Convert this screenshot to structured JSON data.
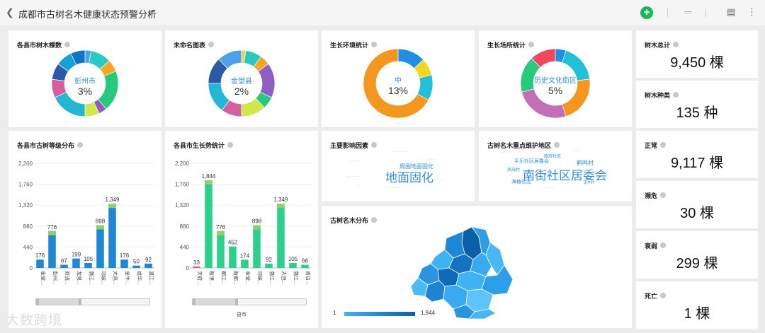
{
  "app": {
    "title": "成都市古树名木健康状态预警分析"
  },
  "cards": {
    "c1": {
      "title": "各县市树木棵数",
      "center_label": "彭州市",
      "center_pct": "3%"
    },
    "c2": {
      "title": "未命名图表",
      "center_label": "金堂县",
      "center_pct": "2%"
    },
    "c3": {
      "title": "生长环境统计",
      "center_label": "中",
      "center_pct": "13%"
    },
    "c4": {
      "title": "生长场所统计",
      "center_label": "历史文化街区",
      "center_pct": "5%"
    },
    "c5": {
      "title": "各县市古树等级分布"
    },
    "c6": {
      "title": "各县市生长势统计",
      "xaxis_name": "县市"
    },
    "c7": {
      "title": "主要影响因素",
      "big_word": "地面固化",
      "mid_word": "周围地面固化"
    },
    "c8": {
      "title": "古树名木重点维护地区",
      "big_word": "南街社区居委会",
      "mid_word": "历史文化街区",
      "words": [
        "鹤鸣村",
        "政府社区",
        "平乐社区居委会",
        "凤电村",
        "太平村",
        "海椿社区"
      ]
    },
    "c9": {
      "title": "古树名木分布",
      "legend_min": "1",
      "legend_max": "1,844"
    }
  },
  "kpis": [
    {
      "title": "树木总计",
      "value": "9,450 棵"
    },
    {
      "title": "树木种类",
      "value": "135 种"
    },
    {
      "title": "正常",
      "value": "9,117 棵"
    },
    {
      "title": "濒危",
      "value": "30 棵"
    },
    {
      "title": "衰弱",
      "value": "299 棵"
    },
    {
      "title": "死亡",
      "value": "1 棵"
    }
  ],
  "watermark": "大数跨境",
  "icons": {
    "back": "chevron-left-icon",
    "menu": "hamburger-icon",
    "add": "plus-icon",
    "present": "present-icon",
    "comment": "comment-icon",
    "more": "more-vertical-icon"
  },
  "chart_data": [
    {
      "type": "pie",
      "title": "各县市树木棵数",
      "slices": [
        {
          "label": "彭州市",
          "pct": 3,
          "color": "#4ea1e8"
        },
        {
          "label": "",
          "pct": 10,
          "color": "#2bc9c4"
        },
        {
          "label": "",
          "pct": 6,
          "color": "#f5a623"
        },
        {
          "label": "",
          "pct": 20,
          "color": "#27c97a"
        },
        {
          "label": "",
          "pct": 4,
          "color": "#8e5ec2"
        },
        {
          "label": "",
          "pct": 7,
          "color": "#cfe84a"
        },
        {
          "label": "",
          "pct": 18,
          "color": "#23b7d6"
        },
        {
          "label": "",
          "pct": 9,
          "color": "#d65fa0"
        },
        {
          "label": "",
          "pct": 8,
          "color": "#2c5aa8"
        },
        {
          "label": "",
          "pct": 8,
          "color": "#17a0d8"
        },
        {
          "label": "",
          "pct": 7,
          "color": "#0f74c2"
        }
      ]
    },
    {
      "type": "pie",
      "title": "未命名图表",
      "slices": [
        {
          "label": "金堂县",
          "pct": 2,
          "color": "#f1d43a"
        },
        {
          "label": "",
          "pct": 8,
          "color": "#2bc9c4"
        },
        {
          "label": "",
          "pct": 5,
          "color": "#f5a623"
        },
        {
          "label": "",
          "pct": 17,
          "color": "#8e5ec2"
        },
        {
          "label": "",
          "pct": 6,
          "color": "#27c97a"
        },
        {
          "label": "",
          "pct": 12,
          "color": "#cfe84a"
        },
        {
          "label": "",
          "pct": 10,
          "color": "#d65fa0"
        },
        {
          "label": "",
          "pct": 15,
          "color": "#23b7d6"
        },
        {
          "label": "",
          "pct": 13,
          "color": "#2c5aa8"
        },
        {
          "label": "",
          "pct": 12,
          "color": "#4ea1e8"
        }
      ]
    },
    {
      "type": "pie",
      "title": "生长环境统计",
      "slices": [
        {
          "label": "中",
          "pct": 13,
          "color": "#1e8fe1"
        },
        {
          "label": "",
          "pct": 8,
          "color": "#f7d51e"
        },
        {
          "label": "",
          "pct": 12,
          "color": "#21c0d6"
        },
        {
          "label": "",
          "pct": 67,
          "color": "#f5961e"
        }
      ]
    },
    {
      "type": "pie",
      "title": "生长场所统计",
      "slices": [
        {
          "label": "历史文化街区",
          "pct": 5,
          "color": "#1e8fe1"
        },
        {
          "label": "",
          "pct": 18,
          "color": "#21c0d6"
        },
        {
          "label": "",
          "pct": 22,
          "color": "#f5961e"
        },
        {
          "label": "",
          "pct": 26,
          "color": "#c36fb8"
        },
        {
          "label": "",
          "pct": 17,
          "color": "#27c97a"
        },
        {
          "label": "",
          "pct": 12,
          "color": "#f0475e"
        }
      ]
    },
    {
      "type": "bar",
      "title": "各县市古树等级分布",
      "categories": [
        "金堂...",
        "彭州...",
        "双流...",
        "龙泉...",
        "蒲江...",
        "邛崃...",
        "大邑...",
        "金牛...",
        "成华...",
        "温江..."
      ],
      "values": [
        176,
        776,
        67,
        199,
        105,
        898,
        1349,
        176,
        50,
        92
      ],
      "ylim": [
        0,
        2200
      ],
      "yticks": [
        0,
        440,
        880,
        1320,
        1760,
        2200
      ]
    },
    {
      "type": "bar",
      "title": "各县市生长势统计",
      "xlabel": "县市",
      "categories": [
        "天府...",
        "新津...",
        "都江...",
        "新都...",
        "金堂...",
        "邛崃...",
        "蒲江...",
        "大邑...",
        "蒲江...",
        "青白..."
      ],
      "values": [
        33,
        1844,
        776,
        452,
        174,
        898,
        92,
        1349,
        105,
        66
      ],
      "ylim": [
        0,
        2200
      ],
      "yticks": [
        0,
        440,
        880,
        1320,
        1760,
        2200
      ]
    }
  ]
}
